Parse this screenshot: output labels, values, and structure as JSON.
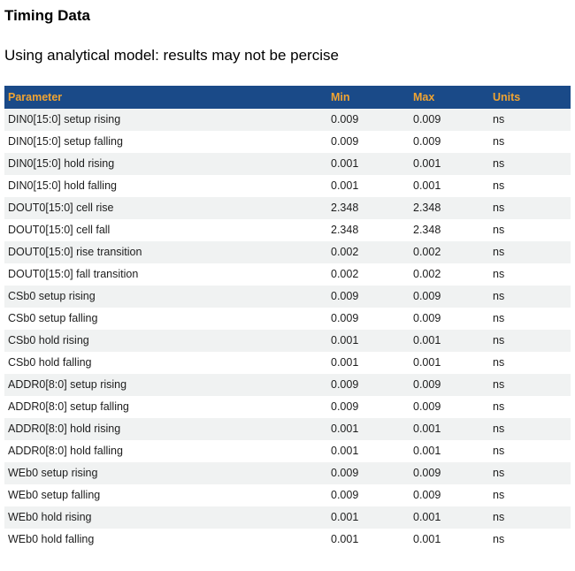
{
  "page": {
    "title": "Timing Data",
    "subtitle": "Using analytical model: results may not be percise"
  },
  "table": {
    "columns": [
      "Parameter",
      "Min",
      "Max",
      "Units"
    ],
    "rows": [
      {
        "parameter": "DIN0[15:0] setup rising",
        "min": "0.009",
        "max": "0.009",
        "units": "ns"
      },
      {
        "parameter": "DIN0[15:0] setup falling",
        "min": "0.009",
        "max": "0.009",
        "units": "ns"
      },
      {
        "parameter": "DIN0[15:0] hold rising",
        "min": "0.001",
        "max": "0.001",
        "units": "ns"
      },
      {
        "parameter": "DIN0[15:0] hold falling",
        "min": "0.001",
        "max": "0.001",
        "units": "ns"
      },
      {
        "parameter": "DOUT0[15:0] cell rise",
        "min": "2.348",
        "max": "2.348",
        "units": "ns"
      },
      {
        "parameter": "DOUT0[15:0] cell fall",
        "min": "2.348",
        "max": "2.348",
        "units": "ns"
      },
      {
        "parameter": "DOUT0[15:0] rise transition",
        "min": "0.002",
        "max": "0.002",
        "units": "ns"
      },
      {
        "parameter": "DOUT0[15:0] fall transition",
        "min": "0.002",
        "max": "0.002",
        "units": "ns"
      },
      {
        "parameter": "CSb0 setup rising",
        "min": "0.009",
        "max": "0.009",
        "units": "ns"
      },
      {
        "parameter": "CSb0 setup falling",
        "min": "0.009",
        "max": "0.009",
        "units": "ns"
      },
      {
        "parameter": "CSb0 hold rising",
        "min": "0.001",
        "max": "0.001",
        "units": "ns"
      },
      {
        "parameter": "CSb0 hold falling",
        "min": "0.001",
        "max": "0.001",
        "units": "ns"
      },
      {
        "parameter": "ADDR0[8:0] setup rising",
        "min": "0.009",
        "max": "0.009",
        "units": "ns"
      },
      {
        "parameter": "ADDR0[8:0] setup falling",
        "min": "0.009",
        "max": "0.009",
        "units": "ns"
      },
      {
        "parameter": "ADDR0[8:0] hold rising",
        "min": "0.001",
        "max": "0.001",
        "units": "ns"
      },
      {
        "parameter": "ADDR0[8:0] hold falling",
        "min": "0.001",
        "max": "0.001",
        "units": "ns"
      },
      {
        "parameter": "WEb0 setup rising",
        "min": "0.009",
        "max": "0.009",
        "units": "ns"
      },
      {
        "parameter": "WEb0 setup falling",
        "min": "0.009",
        "max": "0.009",
        "units": "ns"
      },
      {
        "parameter": "WEb0 hold rising",
        "min": "0.001",
        "max": "0.001",
        "units": "ns"
      },
      {
        "parameter": "WEb0 hold falling",
        "min": "0.001",
        "max": "0.001",
        "units": "ns"
      }
    ]
  },
  "colors": {
    "header_bg": "#1a4a88",
    "header_text": "#f0a432",
    "row_alt_bg": "#f0f2f2",
    "row_bg": "#ffffff",
    "body_text": "#1d1d1d"
  }
}
